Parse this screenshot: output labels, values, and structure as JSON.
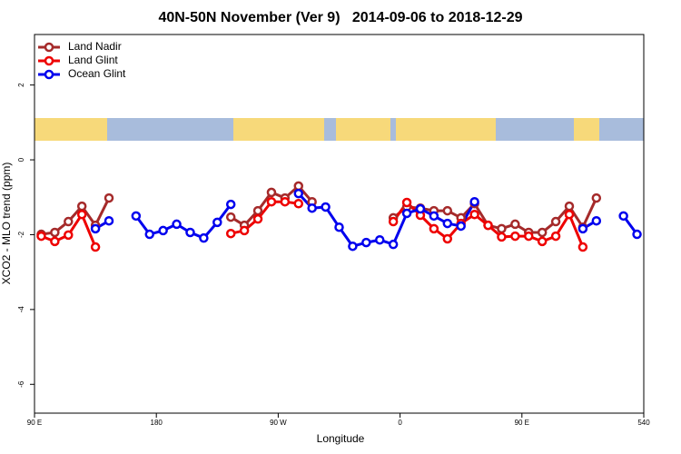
{
  "chart_data": {
    "type": "line",
    "title": "40N-50N November (Ver 9)   2014-09-06 to 2018-12-29",
    "x_label": "Longitude",
    "y_label": "XCO2 - MLO trend (ppm)",
    "x": [
      95,
      105,
      115,
      125,
      135,
      145,
      155,
      165,
      175,
      185,
      195,
      205,
      215,
      225,
      235,
      245,
      255,
      265,
      275,
      285,
      295,
      305,
      315,
      325,
      335,
      345,
      355,
      365,
      375,
      385,
      395,
      405,
      415,
      425,
      435,
      445,
      455,
      465,
      475,
      485,
      495,
      505,
      515,
      525,
      535
    ],
    "series": [
      {
        "name": "Land Nadir",
        "color": "#a52a2a",
        "values": [
          -1.99,
          -1.94,
          -1.65,
          -1.24,
          -1.75,
          -1.02,
          null,
          null,
          null,
          null,
          null,
          null,
          null,
          null,
          -1.53,
          -1.75,
          -1.36,
          -0.87,
          -1.02,
          -0.7,
          -1.12,
          null,
          null,
          null,
          null,
          null,
          -1.55,
          -1.26,
          -1.29,
          -1.36,
          -1.36,
          -1.55,
          -1.17,
          -1.75,
          -1.84,
          -1.72,
          -1.94,
          -1.94,
          -1.65,
          -1.24,
          -1.8,
          -1.02,
          null,
          null,
          null
        ]
      },
      {
        "name": "Land Glint",
        "color": "#ee0000",
        "values": [
          -2.04,
          -2.18,
          -2.01,
          -1.46,
          -2.33,
          null,
          null,
          null,
          null,
          null,
          null,
          null,
          null,
          null,
          -1.97,
          -1.89,
          -1.58,
          -1.12,
          -1.12,
          -1.17,
          null,
          null,
          null,
          null,
          null,
          null,
          -1.65,
          -1.14,
          -1.48,
          -1.84,
          -2.11,
          -1.7,
          -1.46,
          -1.75,
          -2.06,
          -2.04,
          -2.04,
          -2.18,
          -2.04,
          -1.46,
          -2.33,
          null,
          null,
          null,
          null
        ]
      },
      {
        "name": "Ocean Glint",
        "color": "#0000ee",
        "values": [
          null,
          null,
          null,
          null,
          -1.84,
          -1.63,
          null,
          -1.5,
          -1.99,
          -1.89,
          -1.72,
          -1.94,
          -2.09,
          -1.67,
          -1.19,
          null,
          null,
          null,
          null,
          -0.9,
          -1.29,
          -1.26,
          -1.8,
          -2.31,
          -2.21,
          -2.14,
          -2.26,
          -1.43,
          -1.31,
          -1.5,
          -1.7,
          -1.77,
          -1.12,
          null,
          null,
          null,
          null,
          null,
          null,
          null,
          -1.84,
          -1.63,
          null,
          -1.5,
          -1.99
        ]
      }
    ],
    "xlim": [
      90,
      540
    ],
    "xticks": [
      {
        "value": 90,
        "label": "90 E"
      },
      180,
      {
        "value": 270,
        "label": "90 W"
      },
      {
        "value": 360,
        "label": "0"
      },
      {
        "value": 450,
        "label": "90 E"
      },
      540
    ],
    "ylim": [
      -6.77,
      3.35
    ],
    "yticks": [
      -6,
      -4,
      -2,
      0,
      2
    ],
    "grid": false,
    "legend": "top-left"
  }
}
